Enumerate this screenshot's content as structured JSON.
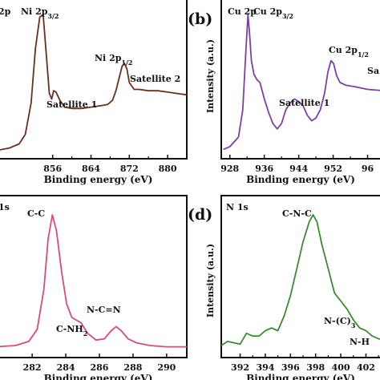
{
  "chart_data": [
    {
      "type": "line",
      "panel_label": "",
      "title": "2p",
      "xlabel": "Binding energy (eV)",
      "ylabel": "",
      "xlim": [
        844,
        884
      ],
      "xticks": [
        "856",
        "864",
        "872",
        "880"
      ],
      "color": "#6b2f1f",
      "series": [
        {
          "x": [
            844,
            847,
            849,
            850.3,
            851.5,
            852.4,
            853.3,
            854.0,
            854.8,
            855.3,
            855.8,
            856.2,
            856.7,
            857.5,
            858.5,
            860,
            862,
            864,
            866,
            867.5,
            868.5,
            869.2,
            870.0,
            870.5,
            871.0,
            871.5,
            872.0,
            873.0,
            874.0,
            876,
            878,
            880,
            882,
            884
          ],
          "y": [
            0,
            0.02,
            0.05,
            0.12,
            0.35,
            0.75,
            0.98,
            1.0,
            0.65,
            0.42,
            0.38,
            0.44,
            0.43,
            0.37,
            0.32,
            0.31,
            0.31,
            0.32,
            0.33,
            0.34,
            0.37,
            0.44,
            0.55,
            0.62,
            0.64,
            0.6,
            0.5,
            0.45,
            0.45,
            0.44,
            0.44,
            0.43,
            0.42,
            0.41
          ]
        }
      ],
      "annotations": [
        {
          "text": "2p",
          "x": 845,
          "y": 1.0
        },
        {
          "text": "Ni 2p3/2",
          "x": 855.0,
          "y": 1.0
        },
        {
          "text": "Ni 2p1/2",
          "x": 869.0,
          "y": 0.66
        },
        {
          "text": "Satellite 2",
          "x": 875.5,
          "y": 0.52
        },
        {
          "text": "Satellite 1",
          "x": 858.5,
          "y": 0.38
        }
      ]
    },
    {
      "type": "line",
      "panel_label": "(b)",
      "title": "Cu 2p",
      "xlabel": "Binding energy (eV)",
      "ylabel": "Intensity (a.u.)",
      "xlim": [
        926,
        964
      ],
      "xticks": [
        "928",
        "936",
        "944",
        "952",
        "96"
      ],
      "color": "#7d3fa6",
      "series": [
        {
          "x": [
            926.5,
            928,
            930,
            931.0,
            931.7,
            932.2,
            932.6,
            933.0,
            933.6,
            934.3,
            935.0,
            936,
            937,
            938,
            939,
            940,
            941,
            942,
            943,
            944,
            945,
            946,
            947,
            948,
            949,
            950,
            950.8,
            951.5,
            952.1,
            952.8,
            953.6,
            955,
            957,
            960,
            964
          ],
          "y": [
            0.01,
            0.03,
            0.1,
            0.3,
            0.72,
            1.0,
            0.85,
            0.66,
            0.56,
            0.52,
            0.5,
            0.38,
            0.28,
            0.2,
            0.16,
            0.2,
            0.3,
            0.35,
            0.38,
            0.36,
            0.33,
            0.26,
            0.22,
            0.24,
            0.3,
            0.42,
            0.58,
            0.66,
            0.64,
            0.55,
            0.5,
            0.48,
            0.47,
            0.45,
            0.44
          ]
        }
      ],
      "annotations": [
        {
          "text": "Cu 2p3/2",
          "x": 932.4,
          "y": 1.0
        },
        {
          "text": "Cu 2p1/2",
          "x": 949.5,
          "y": 0.78
        },
        {
          "text": "Satellite 1",
          "x": 937.5,
          "y": 0.44
        },
        {
          "text": "Sa",
          "x": 960.5,
          "y": 0.62
        }
      ]
    },
    {
      "type": "line",
      "panel_label": "",
      "title": "1s",
      "xlabel": "Binding energy (eV)",
      "ylabel": "",
      "xlim": [
        279.8,
        291.2
      ],
      "xticks": [
        "80",
        "282",
        "284",
        "286",
        "288",
        "290"
      ],
      "color": "#dd4a79",
      "series": [
        {
          "x": [
            279.8,
            281,
            281.8,
            282.3,
            282.7,
            282.95,
            283.2,
            283.45,
            283.75,
            284.05,
            284.35,
            284.6,
            284.9,
            285.3,
            285.8,
            286.3,
            286.7,
            287.0,
            287.3,
            287.7,
            288.2,
            289,
            290,
            291.2
          ],
          "y": [
            0.02,
            0.03,
            0.06,
            0.15,
            0.45,
            0.82,
            1.0,
            0.88,
            0.58,
            0.34,
            0.24,
            0.22,
            0.2,
            0.12,
            0.07,
            0.08,
            0.14,
            0.17,
            0.14,
            0.08,
            0.05,
            0.03,
            0.02,
            0.02
          ]
        }
      ],
      "annotations": [
        {
          "text": "C-C",
          "x": 282.3,
          "y": 1.03
        },
        {
          "text": "C-NH2",
          "x": 284.3,
          "y": 0.14
        },
        {
          "text": "N-C=N",
          "x": 286.7,
          "y": 0.27
        }
      ]
    },
    {
      "type": "line",
      "panel_label": "(d)",
      "title": "N 1s",
      "xlabel": "Binding energy (eV)",
      "ylabel": "Intensity (a.u.)",
      "xlim": [
        390.5,
        403.5
      ],
      "xticks": [
        "392",
        "394",
        "396",
        "398",
        "400",
        "402"
      ],
      "color": "#3b8b32",
      "series": [
        {
          "x": [
            390.5,
            391,
            392,
            392.5,
            393,
            393.5,
            394,
            394.5,
            395,
            395.5,
            396,
            396.5,
            397,
            397.5,
            397.8,
            398.1,
            398.5,
            399,
            399.5,
            400,
            400.5,
            401,
            401.5,
            402,
            402.5,
            403,
            403.5
          ],
          "y": [
            0.03,
            0.06,
            0.04,
            0.12,
            0.1,
            0.1,
            0.14,
            0.16,
            0.14,
            0.25,
            0.4,
            0.6,
            0.8,
            0.95,
            1.0,
            0.95,
            0.78,
            0.6,
            0.42,
            0.36,
            0.3,
            0.22,
            0.16,
            0.14,
            0.1,
            0.08,
            0.07
          ]
        }
      ],
      "annotations": [
        {
          "text": "C-N-C",
          "x": 396.0,
          "y": 1.03
        },
        {
          "text": "N-(C)3",
          "x": 400.6,
          "y": 0.3
        },
        {
          "text": "N-H",
          "x": 401.8,
          "y": 0.12
        }
      ]
    }
  ]
}
